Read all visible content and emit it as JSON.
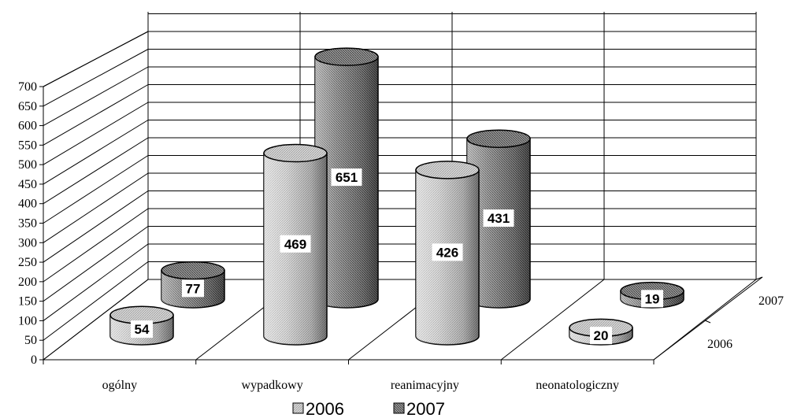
{
  "chart_data": {
    "type": "bar",
    "categories": [
      "ogólny",
      "wypadkowy",
      "reanimacyjny",
      "neonatologiczny"
    ],
    "series": [
      {
        "name": "2006",
        "values": [
          54,
          469,
          426,
          20
        ],
        "color": "#c8c8c8"
      },
      {
        "name": "2007",
        "values": [
          77,
          651,
          431,
          19
        ],
        "color": "#8a8a8a"
      }
    ],
    "y_ticks": [
      "0",
      "50",
      "100",
      "150",
      "200",
      "250",
      "300",
      "350",
      "400",
      "450",
      "500",
      "550",
      "600",
      "650",
      "700"
    ],
    "ylim": [
      0,
      700
    ],
    "depth_labels": [
      "2006",
      "2007"
    ],
    "grid": true,
    "legend_position": "bottom"
  }
}
